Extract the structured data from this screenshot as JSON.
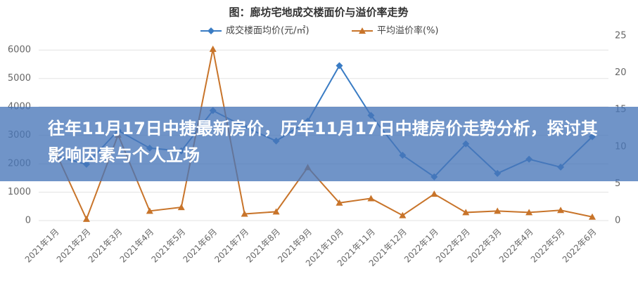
{
  "headline": "往年11月17日中捷最新房价，历年11月17日中捷房价走势分析，探讨其影响因素与个人立场",
  "chart_data": {
    "type": "line",
    "title": "图：廊坊宅地成交楼面价与溢价率走势",
    "categories": [
      "2021年1月",
      "2021年2月",
      "2021年3月",
      "2021年4月",
      "2021年5月",
      "2021年6月",
      "2021年7月",
      "2021年8月",
      "2021年9月",
      "2021年10月",
      "2021年11月",
      "2021年12月",
      "2022年1月",
      "2022年2月",
      "2022年3月",
      "2022年4月",
      "2022年5月",
      "2022年6月"
    ],
    "series": [
      {
        "name": "成交楼面均价(元/㎡)",
        "color": "#3a7cc4",
        "marker": "diamond",
        "values": [
          2280,
          1980,
          3170,
          2550,
          2450,
          3870,
          3300,
          2800,
          3500,
          5450,
          3700,
          2300,
          1540,
          2700,
          1660,
          2160,
          1880,
          2950
        ]
      },
      {
        "name": "平均溢价率(%)",
        "color": "#c8742a",
        "marker": "triangle",
        "axis": "y2",
        "values": [
          9.5,
          0.2,
          11.6,
          1.3,
          1.8,
          23.2,
          0.9,
          1.2,
          7.2,
          2.4,
          3.0,
          0.7,
          3.6,
          1.1,
          1.3,
          1.1,
          1.4,
          0.5
        ]
      }
    ],
    "ylim": [
      0,
      6500
    ],
    "yticks": [
      0,
      1000,
      2000,
      3000,
      4000,
      5000,
      6000
    ],
    "y2lim": [
      0,
      25
    ],
    "y2ticks": [
      0,
      5,
      10,
      15,
      20,
      25
    ],
    "grid": true
  }
}
